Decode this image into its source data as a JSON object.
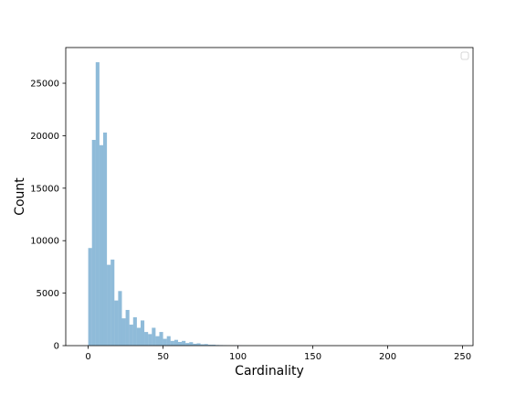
{
  "chart_data": {
    "type": "bar",
    "title": "",
    "xlabel": "Cardinality",
    "ylabel": "Count",
    "xlim": [
      -15,
      257
    ],
    "ylim": [
      0,
      28400
    ],
    "xticks": [
      0,
      50,
      100,
      150,
      200,
      250
    ],
    "yticks": [
      0,
      5000,
      10000,
      15000,
      20000,
      25000
    ],
    "bin_width": 2.5,
    "bin_start": 0,
    "bar_color": "#1f77b4",
    "bar_opacity": 0.5,
    "legend": {
      "position": "top-right",
      "entries": []
    },
    "grid": false,
    "values": [
      9300,
      19600,
      27000,
      19100,
      20300,
      7700,
      8200,
      4300,
      5200,
      2600,
      3400,
      2000,
      2700,
      1700,
      2400,
      1300,
      1100,
      1700,
      900,
      1300,
      650,
      900,
      450,
      550,
      350,
      450,
      250,
      330,
      180,
      220,
      130,
      150,
      90,
      90,
      60,
      50,
      40,
      30,
      25,
      20,
      15,
      10,
      8,
      6,
      5,
      4,
      3,
      3,
      2,
      2,
      2,
      1,
      1,
      1,
      1,
      1,
      1,
      1,
      1,
      1
    ]
  }
}
